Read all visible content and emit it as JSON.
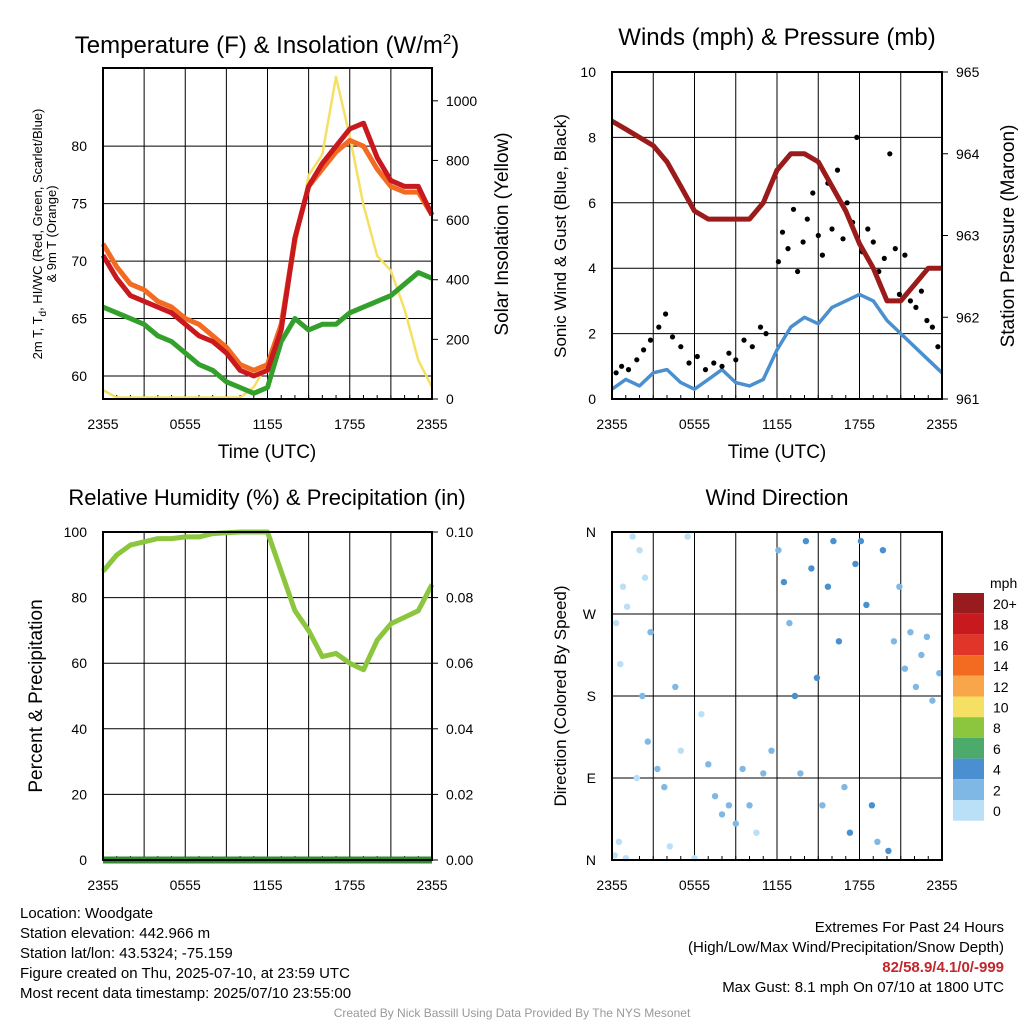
{
  "colors": {
    "temp": "#c8191e",
    "dewpoint": "#33a02c",
    "heat_index": "#c8191e",
    "temp_9m": "#f36a21",
    "insolation": "#f5e063",
    "wind": "#4a90d0",
    "gust": "#000000",
    "pressure": "#9b1b1b",
    "rh": "#8cc63f",
    "precip": "#2e8b2e"
  },
  "x_ticks": [
    "2355",
    "0555",
    "1155",
    "1755",
    "2355"
  ],
  "chart_data": [
    {
      "id": "temp",
      "type": "line",
      "title": "Temperature (F) & Insolation (W/m",
      "title_sup": "2",
      "title_end": ")",
      "xlabel": "Time (UTC)",
      "ylabel_lines": [
        "2m T, T",
        "d",
        ", HI/WC (Red, Green, Scarlet/Blue)",
        "& 9m T (Orange)"
      ],
      "y2label": "Solar Insolation (Yellow)",
      "ylim": [
        58,
        86.8
      ],
      "y_ticks": [
        60,
        65,
        70,
        75,
        80
      ],
      "y2lim": [
        0,
        1110
      ],
      "y2_ticks": [
        0,
        200,
        400,
        600,
        800,
        1000
      ],
      "x": [
        0,
        1,
        2,
        3,
        4,
        5,
        6,
        7,
        8,
        9,
        10,
        11,
        12,
        13,
        14,
        15,
        16,
        17,
        18,
        19,
        20,
        21,
        22,
        23,
        24
      ],
      "series": [
        {
          "key": "temp",
          "values": [
            70.5,
            68.5,
            67.0,
            66.5,
            66.0,
            65.5,
            64.5,
            63.5,
            63.0,
            62.0,
            60.5,
            60.0,
            60.5,
            64.0,
            72.0,
            76.5,
            78.5,
            80.0,
            81.5,
            82.0,
            79.0,
            77.0,
            76.5,
            76.5,
            74.0
          ]
        },
        {
          "key": "temp_9m",
          "values": [
            71.5,
            69.5,
            68.0,
            67.5,
            66.5,
            66.0,
            65.0,
            64.5,
            63.5,
            62.5,
            61.0,
            60.5,
            61.0,
            64.5,
            72.0,
            76.5,
            78.0,
            79.5,
            80.5,
            80.0,
            78.0,
            76.5,
            76.0,
            76.0,
            74.0
          ]
        },
        {
          "key": "dewpoint",
          "values": [
            66.0,
            65.5,
            65.0,
            64.5,
            63.5,
            63.0,
            62.0,
            61.0,
            60.5,
            59.5,
            59.0,
            58.5,
            59.0,
            63.0,
            65.0,
            64.0,
            64.5,
            64.5,
            65.5,
            66.0,
            66.5,
            67.0,
            68.0,
            69.0,
            68.5
          ]
        },
        {
          "key": "insolation",
          "axis": "y2",
          "values": [
            30,
            5,
            5,
            5,
            5,
            5,
            5,
            5,
            5,
            5,
            5,
            40,
            120,
            250,
            500,
            750,
            820,
            1080,
            880,
            650,
            480,
            430,
            300,
            130,
            40
          ]
        }
      ]
    },
    {
      "id": "wind",
      "type": "line",
      "title": "Winds (mph) & Pressure (mb)",
      "xlabel": "Time (UTC)",
      "ylabel": "Sonic Wind & Gust (Blue, Black)",
      "y2label": "Station Pressure (Maroon)",
      "ylim": [
        0,
        10
      ],
      "y_ticks": [
        0,
        2,
        4,
        6,
        8,
        10
      ],
      "y2lim": [
        961,
        965
      ],
      "y2_ticks": [
        961,
        962,
        963,
        964,
        965
      ],
      "x": [
        0,
        1,
        2,
        3,
        4,
        5,
        6,
        7,
        8,
        9,
        10,
        11,
        12,
        13,
        14,
        15,
        16,
        17,
        18,
        19,
        20,
        21,
        22,
        23,
        24
      ],
      "series": [
        {
          "key": "wind",
          "values": [
            0.3,
            0.6,
            0.4,
            0.8,
            0.9,
            0.5,
            0.3,
            0.6,
            0.9,
            0.5,
            0.4,
            0.6,
            1.5,
            2.2,
            2.5,
            2.3,
            2.8,
            3.0,
            3.2,
            3.0,
            2.4,
            2.0,
            1.6,
            1.2,
            0.8
          ]
        },
        {
          "key": "pressure",
          "axis": "y2",
          "values": [
            964.4,
            964.3,
            964.2,
            964.1,
            963.9,
            963.6,
            963.3,
            963.2,
            963.2,
            963.2,
            963.2,
            963.4,
            963.8,
            964.0,
            964.0,
            963.9,
            963.6,
            963.3,
            962.9,
            962.6,
            962.2,
            962.2,
            962.4,
            962.6,
            962.6
          ]
        }
      ],
      "gust_points": [
        [
          0.3,
          0.8
        ],
        [
          0.7,
          1.0
        ],
        [
          1.2,
          0.9
        ],
        [
          1.8,
          1.2
        ],
        [
          2.3,
          1.5
        ],
        [
          2.8,
          1.8
        ],
        [
          3.4,
          2.2
        ],
        [
          3.9,
          2.6
        ],
        [
          4.4,
          1.9
        ],
        [
          5.0,
          1.6
        ],
        [
          5.6,
          1.1
        ],
        [
          6.2,
          1.3
        ],
        [
          6.8,
          0.9
        ],
        [
          7.4,
          1.1
        ],
        [
          8.0,
          1.0
        ],
        [
          8.5,
          1.4
        ],
        [
          9.0,
          1.2
        ],
        [
          9.6,
          1.8
        ],
        [
          10.2,
          1.6
        ],
        [
          10.8,
          2.2
        ],
        [
          11.2,
          2.0
        ],
        [
          12.1,
          4.2
        ],
        [
          12.4,
          5.1
        ],
        [
          12.8,
          4.6
        ],
        [
          13.2,
          5.8
        ],
        [
          13.5,
          3.9
        ],
        [
          13.9,
          4.8
        ],
        [
          14.2,
          5.5
        ],
        [
          14.6,
          6.3
        ],
        [
          15.0,
          5.0
        ],
        [
          15.3,
          4.4
        ],
        [
          15.7,
          6.6
        ],
        [
          16.0,
          5.2
        ],
        [
          16.4,
          7.0
        ],
        [
          16.8,
          4.9
        ],
        [
          17.1,
          6.0
        ],
        [
          17.5,
          5.4
        ],
        [
          17.8,
          8.0
        ],
        [
          18.2,
          4.5
        ],
        [
          18.6,
          5.2
        ],
        [
          19.0,
          4.8
        ],
        [
          19.4,
          3.9
        ],
        [
          19.8,
          4.3
        ],
        [
          20.2,
          7.5
        ],
        [
          20.6,
          4.6
        ],
        [
          20.9,
          3.2
        ],
        [
          21.3,
          4.4
        ],
        [
          21.7,
          3.0
        ],
        [
          22.1,
          2.8
        ],
        [
          22.5,
          3.3
        ],
        [
          22.9,
          2.4
        ],
        [
          23.3,
          2.2
        ],
        [
          23.7,
          1.6
        ]
      ]
    },
    {
      "id": "rh",
      "type": "line",
      "title": "Relative Humidity (%) & Precipitation (in)",
      "ylabel": "Percent & Precipitation",
      "ylim": [
        0,
        100
      ],
      "y_ticks": [
        0,
        20,
        40,
        60,
        80,
        100
      ],
      "y2lim": [
        0,
        0.1
      ],
      "y2_ticks": [
        "0.00",
        "0.02",
        "0.04",
        "0.06",
        "0.08",
        "0.10"
      ],
      "x": [
        0,
        1,
        2,
        3,
        4,
        5,
        6,
        7,
        8,
        9,
        10,
        11,
        12,
        13,
        14,
        15,
        16,
        17,
        18,
        19,
        20,
        21,
        22,
        23,
        24
      ],
      "series": [
        {
          "key": "rh",
          "values": [
            88,
            93,
            96,
            97,
            98,
            98,
            98.5,
            98.5,
            99.5,
            99.8,
            100,
            100,
            100,
            88,
            76,
            70,
            62,
            63,
            60,
            58,
            67,
            72,
            74,
            76,
            84
          ]
        },
        {
          "key": "precip",
          "axis": "y2",
          "values": [
            0,
            0,
            0,
            0,
            0,
            0,
            0,
            0,
            0,
            0,
            0,
            0,
            0,
            0,
            0,
            0,
            0,
            0,
            0,
            0,
            0,
            0,
            0,
            0,
            0
          ]
        }
      ]
    },
    {
      "id": "direction",
      "type": "scatter",
      "title": "Wind Direction",
      "ylabel": "Direction (Colored By Speed)",
      "y_ticks": [
        "N",
        "E",
        "S",
        "W",
        "N"
      ],
      "ylim": [
        0,
        360
      ],
      "legend_title": "mph",
      "legend_labels": [
        "20+",
        "18",
        "16",
        "14",
        "12",
        "10",
        "8",
        "6",
        "4",
        "2",
        "0"
      ],
      "legend_colors": [
        "#981c1e",
        "#c8191e",
        "#e2352a",
        "#f36a21",
        "#f9a64a",
        "#f5e063",
        "#8cc63f",
        "#4caa6a",
        "#4a90d0",
        "#7fb8e4",
        "#b9e0f6"
      ],
      "points": [
        [
          0.2,
          5,
          0.5
        ],
        [
          0.5,
          20,
          0.4
        ],
        [
          1.0,
          2,
          0.3
        ],
        [
          0.3,
          260,
          0.4
        ],
        [
          0.6,
          215,
          0.3
        ],
        [
          1.1,
          278,
          0.5
        ],
        [
          0.8,
          300,
          0.4
        ],
        [
          1.5,
          355,
          0.6
        ],
        [
          2.0,
          340,
          0.5
        ],
        [
          2.4,
          310,
          0.8
        ],
        [
          2.8,
          250,
          1.2
        ],
        [
          2.2,
          180,
          1.0
        ],
        [
          1.8,
          90,
          0.7
        ],
        [
          2.6,
          130,
          1.1
        ],
        [
          3.3,
          100,
          1.6
        ],
        [
          3.8,
          80,
          1.4
        ],
        [
          4.2,
          15,
          0.9
        ],
        [
          4.6,
          190,
          1.2
        ],
        [
          5.0,
          120,
          0.8
        ],
        [
          5.5,
          355,
          0.6
        ],
        [
          6.0,
          2,
          0.4
        ],
        [
          6.5,
          160,
          0.9
        ],
        [
          7.0,
          105,
          1.3
        ],
        [
          7.5,
          70,
          1.6
        ],
        [
          8.0,
          50,
          1.4
        ],
        [
          8.5,
          60,
          1.8
        ],
        [
          9.0,
          40,
          1.2
        ],
        [
          9.5,
          100,
          1.6
        ],
        [
          10.0,
          60,
          1.4
        ],
        [
          10.5,
          30,
          0.8
        ],
        [
          11.0,
          95,
          1.3
        ],
        [
          11.6,
          120,
          1.9
        ],
        [
          12.1,
          340,
          2.6
        ],
        [
          12.5,
          305,
          3.2
        ],
        [
          12.9,
          260,
          2.8
        ],
        [
          13.3,
          180,
          3.0
        ],
        [
          13.7,
          95,
          2.6
        ],
        [
          14.1,
          350,
          3.4
        ],
        [
          14.5,
          320,
          3.0
        ],
        [
          14.9,
          200,
          3.3
        ],
        [
          15.3,
          60,
          2.7
        ],
        [
          15.7,
          300,
          3.8
        ],
        [
          16.1,
          350,
          3.1
        ],
        [
          16.5,
          240,
          3.4
        ],
        [
          16.9,
          80,
          2.9
        ],
        [
          17.3,
          30,
          3.1
        ],
        [
          17.7,
          325,
          3.5
        ],
        [
          18.1,
          350,
          4.1
        ],
        [
          18.5,
          280,
          3.0
        ],
        [
          18.9,
          60,
          3.2
        ],
        [
          19.3,
          20,
          2.7
        ],
        [
          19.7,
          340,
          3.3
        ],
        [
          20.1,
          10,
          3.5
        ],
        [
          20.5,
          240,
          2.8
        ],
        [
          20.9,
          300,
          2.5
        ],
        [
          21.3,
          210,
          2.3
        ],
        [
          21.7,
          250,
          2.0
        ],
        [
          22.1,
          190,
          1.9
        ],
        [
          22.5,
          225,
          2.1
        ],
        [
          22.9,
          245,
          1.7
        ],
        [
          23.3,
          175,
          1.5
        ],
        [
          23.8,
          205,
          1.2
        ]
      ]
    }
  ],
  "footer": {
    "location": "Location: Woodgate",
    "elevation": "Station elevation: 442.966 m",
    "latlon": "Station lat/lon: 43.5324; -75.159",
    "created": "Figure created on Thu, 2025-07-10, at 23:59 UTC",
    "recent": "Most recent data timestamp: 2025/07/10 23:55:00",
    "extremes_title": "Extremes For Past 24 Hours",
    "extremes_subtitle": "(High/Low/Max Wind/Precipitation/Snow Depth)",
    "extremes_values": "82/58.9/4.1/0/-999",
    "max_gust": "Max Gust: 8.1 mph On 07/10 at 1800 UTC",
    "credit": "Created By Nick Bassill Using Data Provided By The NYS Mesonet"
  }
}
